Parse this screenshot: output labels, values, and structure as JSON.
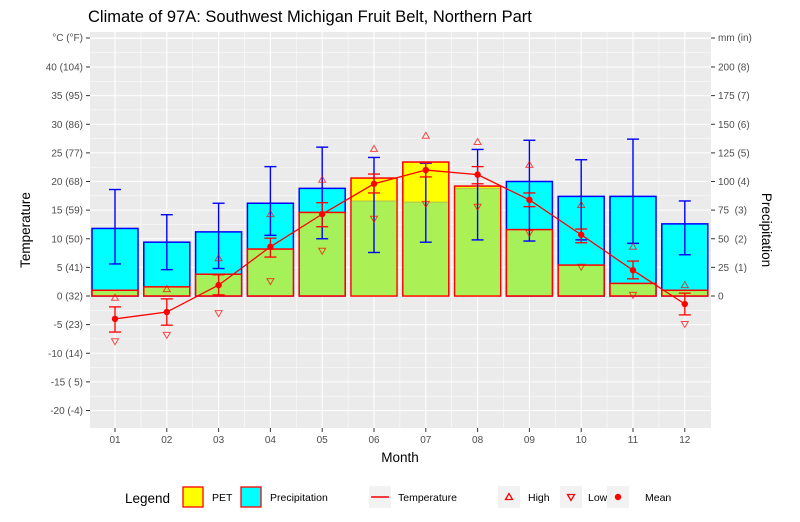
{
  "chart_data": {
    "type": "bar",
    "title": "Climate of 97A: Southwest Michigan Fruit Belt, Northern Part",
    "xlabel": "Month",
    "ylabel": "Temperature",
    "ylabel_right": "Precipitation",
    "categories": [
      "01",
      "02",
      "03",
      "04",
      "05",
      "06",
      "07",
      "08",
      "09",
      "10",
      "11",
      "12"
    ],
    "left_axis": {
      "unit_label": "°C (°F)",
      "range": [
        -22,
        45
      ],
      "ticks": [
        {
          "value": 40,
          "label": "40 (104)"
        },
        {
          "value": 35,
          "label": "35 (95)"
        },
        {
          "value": 30,
          "label": "30 (86)"
        },
        {
          "value": 25,
          "label": "25 (77)"
        },
        {
          "value": 20,
          "label": "20 (68)"
        },
        {
          "value": 15,
          "label": "15 (59)"
        },
        {
          "value": 10,
          "label": "10 (50)"
        },
        {
          "value": 5,
          "label": "5 (41)"
        },
        {
          "value": 0,
          "label": "0 (32)"
        },
        {
          "value": -5,
          "label": "-5 (23)"
        },
        {
          "value": -10,
          "label": "-10 (14)"
        },
        {
          "value": -15,
          "label": "-15 ( 5)"
        },
        {
          "value": -20,
          "label": "-20 (-4)"
        }
      ]
    },
    "right_axis": {
      "unit_label": "mm (in)",
      "mm_per_degree": 5,
      "ticks": [
        {
          "value": 200,
          "label": "200 (8)"
        },
        {
          "value": 175,
          "label": "175 (7)"
        },
        {
          "value": 150,
          "label": "150 (6)"
        },
        {
          "value": 125,
          "label": "125 (5)"
        },
        {
          "value": 100,
          "label": "100 (4)"
        },
        {
          "value": 75,
          "label": "75  (3)"
        },
        {
          "value": 50,
          "label": "50  (2)"
        },
        {
          "value": 25,
          "label": "25  (1)"
        },
        {
          "value": 0,
          "label": "0"
        }
      ]
    },
    "series": [
      {
        "name": "Precipitation",
        "unit": "mm",
        "values": [
          59,
          47,
          56,
          81,
          94,
          83,
          82,
          94,
          100,
          87,
          87,
          63
        ],
        "error_low": [
          28,
          23,
          24,
          53,
          50,
          38,
          47,
          49,
          48,
          49,
          46,
          36
        ],
        "error_high": [
          93,
          71,
          81,
          113,
          130,
          121,
          116,
          128,
          136,
          119,
          137,
          83
        ]
      },
      {
        "name": "PET",
        "unit": "mm",
        "values": [
          5,
          8,
          19,
          41,
          73,
          103,
          117,
          96,
          58,
          27,
          11,
          5
        ]
      },
      {
        "name": "Temperature",
        "unit": "°C",
        "values": [
          -4.0,
          -2.8,
          1.9,
          8.6,
          14.3,
          19.6,
          22.0,
          21.2,
          16.8,
          10.7,
          4.5,
          -1.4
        ],
        "error_low": [
          -6.3,
          -5.1,
          0.2,
          6.8,
          12.1,
          18.0,
          20.8,
          19.6,
          15.6,
          9.3,
          3.0,
          -3.3
        ],
        "error_high": [
          -1.9,
          -0.5,
          3.7,
          10.1,
          16.3,
          21.3,
          23.3,
          22.6,
          18.0,
          11.7,
          6.1,
          0.5
        ]
      },
      {
        "name": "High",
        "unit": "°C",
        "values": [
          -0.3,
          1.2,
          6.6,
          14.3,
          20.3,
          25.7,
          28.0,
          26.9,
          22.9,
          15.9,
          8.6,
          1.9
        ]
      },
      {
        "name": "Low",
        "unit": "°C",
        "values": [
          -7.9,
          -6.8,
          -3.0,
          2.6,
          7.9,
          13.5,
          16.1,
          15.6,
          11.0,
          5.1,
          0.2,
          -4.9
        ]
      }
    ],
    "legend": {
      "title": "Legend",
      "placement": "bottom",
      "items": [
        {
          "label": "PET",
          "kind": "fill",
          "color": "#ffff00",
          "border": "#ff0000"
        },
        {
          "label": "Precipitation",
          "kind": "fill",
          "color": "#00ffff",
          "border": "#ff0000"
        },
        {
          "label": "Temperature",
          "kind": "line",
          "color": "#ff0000"
        },
        {
          "label": "High",
          "kind": "triangle-up",
          "color": "#ff0000"
        },
        {
          "label": "Low",
          "kind": "triangle-down",
          "color": "#ff0000"
        },
        {
          "label": "Mean",
          "kind": "point",
          "color": "#ff0000"
        }
      ]
    },
    "colors": {
      "precip_fill": "#00ffff",
      "precip_border": "#0000ff",
      "pet_fill": "#ffff00",
      "pet_border": "#ff0000",
      "overlap_fill": "#a6f05a",
      "temperature": "#ff0000",
      "panel": "#ebebeb"
    },
    "grid": true
  }
}
